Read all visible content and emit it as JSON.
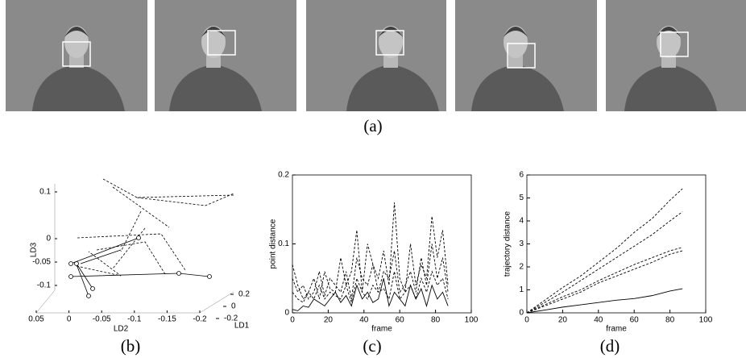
{
  "figure_a": {
    "caption": "(a)"
  },
  "figure_b": {
    "caption": "(b)",
    "ld3_label": "LD3",
    "ld2_label": "LD2",
    "ld1_label": "LD1",
    "ld3_ticks": [
      0.1,
      0,
      -0.05,
      -0.1
    ],
    "ld2_ticks": [
      0.05,
      0,
      -0.05,
      -0.1,
      -0.15,
      -0.2
    ],
    "ld1_ticks": [
      0.2,
      0,
      -0.2
    ]
  },
  "chart_data": [
    {
      "type": "line",
      "caption": "(c)",
      "xlabel": "frame",
      "ylabel": "point distance",
      "x": [
        0,
        3,
        6,
        9,
        12,
        15,
        18,
        21,
        24,
        27,
        30,
        33,
        36,
        39,
        42,
        45,
        48,
        51,
        54,
        57,
        60,
        63,
        66,
        69,
        72,
        75,
        78,
        81,
        84,
        87
      ],
      "xlim": [
        0,
        100
      ],
      "ylim": [
        0,
        0.2
      ],
      "xticks": [
        0,
        20,
        40,
        60,
        80,
        100
      ],
      "yticks": [
        0,
        0.1,
        0.2
      ],
      "series": [
        {
          "color": "#000000",
          "dashed": false,
          "values": [
            0.005,
            0.003,
            0.01,
            0.008,
            0.02,
            0.015,
            0.01,
            0.02,
            0.03,
            0.015,
            0.025,
            0.01,
            0.04,
            0.02,
            0.03,
            0.015,
            0.02,
            0.05,
            0.01,
            0.03,
            0.02,
            0.01,
            0.04,
            0.02,
            0.035,
            0.01,
            0.04,
            0.02,
            0.03,
            0.01
          ]
        },
        {
          "color": "#000000",
          "dashed": true,
          "values": [
            0.07,
            0.04,
            0.02,
            0.03,
            0.05,
            0.02,
            0.06,
            0.035,
            0.03,
            0.08,
            0.04,
            0.06,
            0.12,
            0.03,
            0.1,
            0.07,
            0.05,
            0.09,
            0.04,
            0.16,
            0.05,
            0.03,
            0.1,
            0.04,
            0.07,
            0.05,
            0.14,
            0.08,
            0.12,
            0.04
          ]
        },
        {
          "color": "#000000",
          "dashed": true,
          "values": [
            0.05,
            0.03,
            0.04,
            0.02,
            0.03,
            0.06,
            0.025,
            0.05,
            0.04,
            0.03,
            0.06,
            0.02,
            0.08,
            0.05,
            0.04,
            0.07,
            0.03,
            0.06,
            0.05,
            0.09,
            0.03,
            0.04,
            0.06,
            0.03,
            0.08,
            0.04,
            0.1,
            0.05,
            0.08,
            0.03
          ]
        },
        {
          "color": "#000000",
          "dashed": true,
          "values": [
            0.03,
            0.02,
            0.015,
            0.03,
            0.02,
            0.04,
            0.02,
            0.03,
            0.025,
            0.02,
            0.04,
            0.015,
            0.05,
            0.03,
            0.02,
            0.04,
            0.03,
            0.035,
            0.02,
            0.06,
            0.02,
            0.03,
            0.04,
            0.02,
            0.05,
            0.03,
            0.06,
            0.04,
            0.05,
            0.02
          ]
        }
      ]
    },
    {
      "type": "line",
      "caption": "(d)",
      "xlabel": "frame",
      "ylabel": "trajectory distance",
      "x": [
        0,
        10,
        20,
        30,
        40,
        50,
        60,
        70,
        80,
        87
      ],
      "xlim": [
        0,
        100
      ],
      "ylim": [
        0,
        6
      ],
      "xticks": [
        0,
        20,
        40,
        60,
        80,
        100
      ],
      "yticks": [
        0,
        1,
        2,
        3,
        4,
        5,
        6
      ],
      "series": [
        {
          "color": "#000000",
          "dashed": false,
          "values": [
            0,
            0.12,
            0.25,
            0.35,
            0.45,
            0.55,
            0.62,
            0.75,
            0.95,
            1.05
          ]
        },
        {
          "color": "#000000",
          "dashed": true,
          "values": [
            0,
            0.3,
            0.6,
            0.9,
            1.3,
            1.6,
            1.9,
            2.2,
            2.55,
            2.7
          ]
        },
        {
          "color": "#000000",
          "dashed": true,
          "values": [
            0,
            0.35,
            0.7,
            1.0,
            1.4,
            1.75,
            2.1,
            2.4,
            2.7,
            2.85
          ]
        },
        {
          "color": "#000000",
          "dashed": true,
          "values": [
            0,
            0.45,
            0.9,
            1.4,
            1.9,
            2.4,
            2.9,
            3.4,
            4.0,
            4.4
          ]
        },
        {
          "color": "#000000",
          "dashed": true,
          "values": [
            0,
            0.55,
            1.1,
            1.6,
            2.2,
            2.8,
            3.5,
            4.1,
            4.9,
            5.4
          ]
        }
      ]
    }
  ]
}
